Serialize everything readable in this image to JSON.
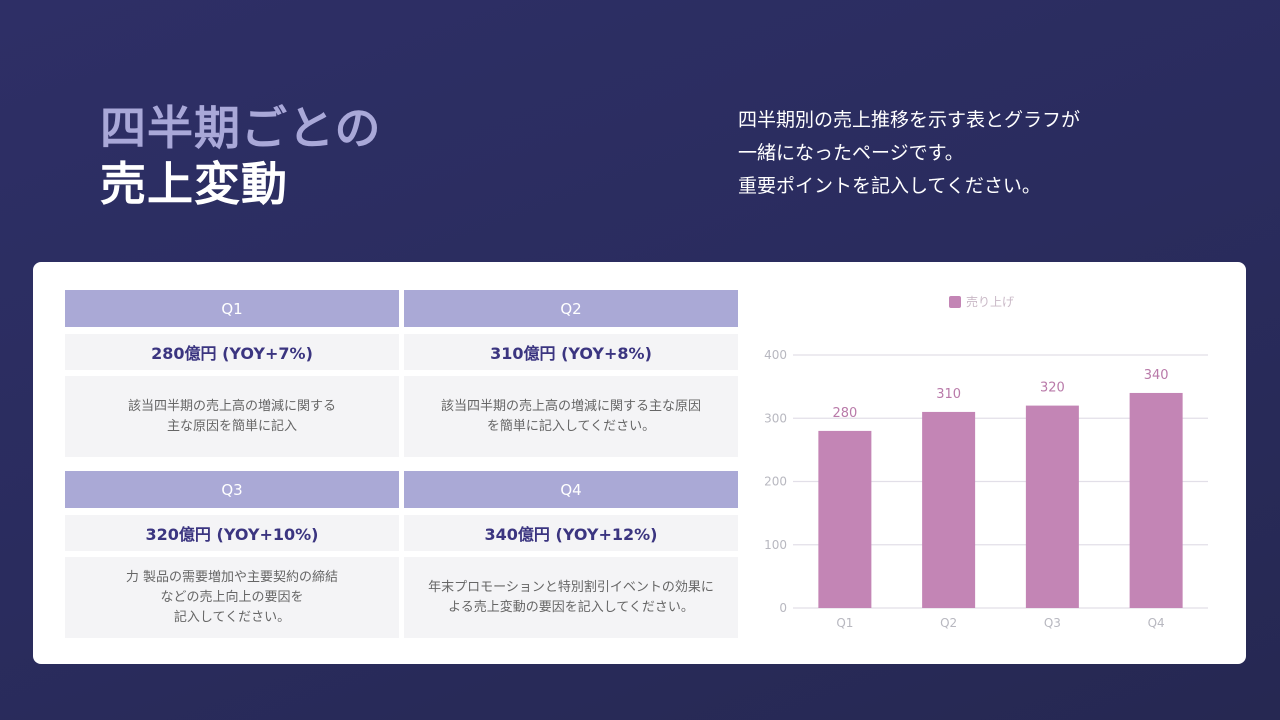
{
  "title": {
    "line1": "四半期ごとの",
    "line2": "売上変動"
  },
  "description": [
    "四半期別の売上推移を示す表とグラフが",
    "一緒になったページです。",
    "重要ポイントを記入してください。"
  ],
  "quarters": [
    {
      "label": "Q1",
      "value": "280億円 (YOY+7%)",
      "note": [
        "該当四半期の売上高の増減に関する",
        "主な原因を簡単に記入"
      ]
    },
    {
      "label": "Q2",
      "value": "310億円 (YOY+8%)",
      "note": [
        "該当四半期の売上高の増減に関する主な原因",
        "を簡単に記入してください。"
      ]
    },
    {
      "label": "Q3",
      "value": "320億円 (YOY+10%)",
      "note": [
        "力 製品の需要増加や主要契約の締結",
        "などの売上向上の要因を",
        "記入してください。"
      ]
    },
    {
      "label": "Q4",
      "value": "340億円 (YOY+12%)",
      "note": [
        "年末プロモーションと特別割引イベントの効果に",
        "よる売上変動の要因を記入してください。"
      ]
    }
  ],
  "chart_data": {
    "type": "bar",
    "categories": [
      "Q1",
      "Q2",
      "Q3",
      "Q4"
    ],
    "series": [
      {
        "name": "売り上げ",
        "values": [
          280,
          310,
          320,
          340
        ]
      }
    ],
    "ylim": [
      0,
      400
    ],
    "yticks": [
      0,
      100,
      200,
      300,
      400
    ],
    "grid": true,
    "legend": "top",
    "color": "#c385b5",
    "data_labels": true
  }
}
